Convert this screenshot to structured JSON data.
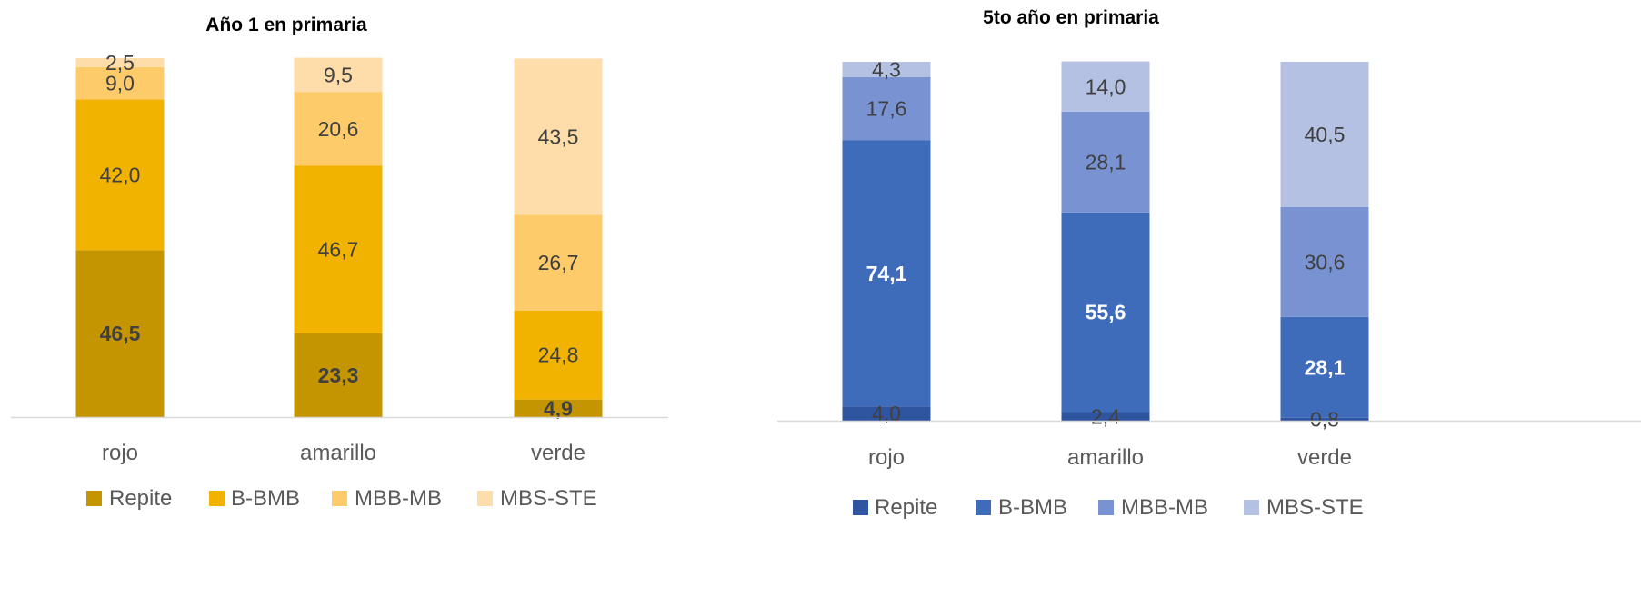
{
  "chart_data": [
    {
      "type": "bar",
      "stacked": true,
      "title": "Año 1 en primaria",
      "categories": [
        "rojo",
        "amarillo",
        "verde"
      ],
      "series": [
        {
          "name": "Repite",
          "values": [
            46.5,
            23.3,
            4.9
          ],
          "labels": [
            "46,5",
            "23,3",
            "4,9"
          ],
          "color": "#c49500",
          "label_color": "#404040",
          "label_bold": true
        },
        {
          "name": "B-BMB",
          "values": [
            42.0,
            46.7,
            24.8
          ],
          "labels": [
            "42,0",
            "46,7",
            "24,8"
          ],
          "color": "#f1b300",
          "label_color": "#404040",
          "label_bold": false
        },
        {
          "name": "MBB-MB",
          "values": [
            9.0,
            20.6,
            26.7
          ],
          "labels": [
            "9,0",
            "20,6",
            "26,7"
          ],
          "color": "#fecb6b",
          "label_color": "#404040",
          "label_bold": false
        },
        {
          "name": "MBS-STE",
          "values": [
            2.5,
            9.5,
            43.5
          ],
          "labels": [
            "2,5",
            "9,5",
            "43,5"
          ],
          "color": "#feddaa",
          "label_color": "#404040",
          "label_bold": false
        }
      ],
      "ylim": [
        0,
        100
      ],
      "grid": false,
      "legend": "bottom"
    },
    {
      "type": "bar",
      "stacked": true,
      "title": "5to año en primaria",
      "categories": [
        "rojo",
        "amarillo",
        "verde"
      ],
      "series": [
        {
          "name": "Repite",
          "values": [
            4.0,
            2.4,
            0.8
          ],
          "labels": [
            "4,0",
            "2,4",
            "0,8"
          ],
          "color": "#2f55a0",
          "label_color": "#404040",
          "label_bold": false
        },
        {
          "name": "B-BMB",
          "values": [
            74.1,
            55.6,
            28.1
          ],
          "labels": [
            "74,1",
            "55,6",
            "28,1"
          ],
          "color": "#3f6bbb",
          "label_color": "#ffffff",
          "label_bold": true
        },
        {
          "name": "MBB-MB",
          "values": [
            17.6,
            28.1,
            30.6
          ],
          "labels": [
            "17,6",
            "28,1",
            "30,6"
          ],
          "color": "#7892d2",
          "label_color": "#404040",
          "label_bold": false
        },
        {
          "name": "MBS-STE",
          "values": [
            4.3,
            14.0,
            40.5
          ],
          "labels": [
            "4,3",
            "14,0",
            "40,5"
          ],
          "color": "#b4c1e2",
          "label_color": "#404040",
          "label_bold": false
        }
      ],
      "ylim": [
        0,
        100
      ],
      "grid": false,
      "legend": "bottom"
    }
  ]
}
